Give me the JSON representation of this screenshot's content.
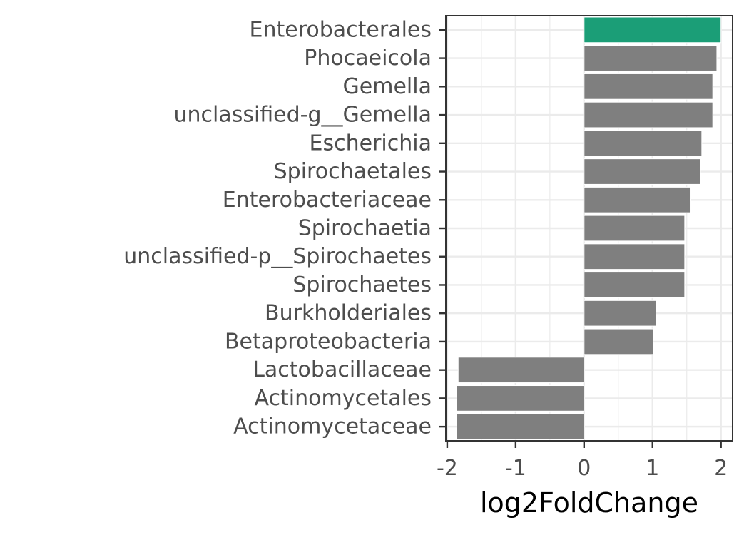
{
  "chart_data": {
    "type": "bar",
    "orientation": "horizontal",
    "xlabel": "log2FoldChange",
    "ylabel": "",
    "xlim": [
      -2.02,
      2.17
    ],
    "xticks": [
      -2,
      -1,
      0,
      1,
      2
    ],
    "xtick_labels": [
      "-2",
      "-1",
      "0",
      "1",
      "2"
    ],
    "grid": true,
    "colors": {
      "highlight": "#1b9e77",
      "default": "#7f7f7f",
      "grid": "#ebebeb",
      "border": "#333333"
    },
    "categories": [
      "Enterobacterales",
      "Phocaeicola",
      "Gemella",
      "unclassified-g__Gemella",
      "Escherichia",
      "Spirochaetales",
      "Enterobacteriaceae",
      "Spirochaetia",
      "unclassified-p__Spirochaetes",
      "Spirochaetes",
      "Burkholderiales",
      "Betaproteobacteria",
      "Lactobacillaceae",
      "Actinomycetales",
      "Actinomycetaceae"
    ],
    "values": [
      2.0,
      1.94,
      1.88,
      1.88,
      1.72,
      1.7,
      1.55,
      1.47,
      1.47,
      1.47,
      1.05,
      1.01,
      -1.84,
      -1.86,
      -1.86
    ],
    "highlighted": [
      "Enterobacterales"
    ]
  }
}
